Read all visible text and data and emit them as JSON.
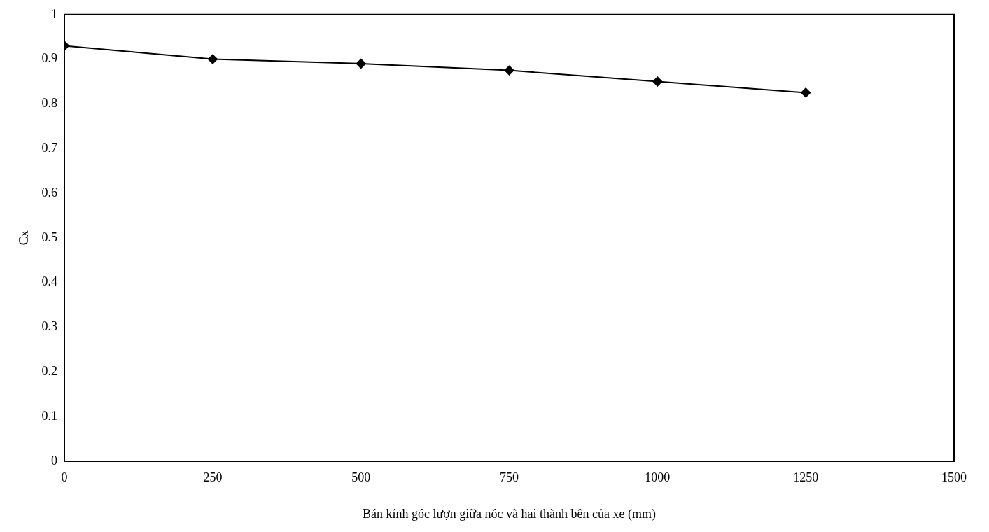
{
  "chart_data": {
    "type": "line",
    "xlabel": "Bán kính góc lượn giữa nóc và hai thành bên của xe (mm)",
    "ylabel": "Cx",
    "x": [
      0,
      250,
      500,
      750,
      1000,
      1250
    ],
    "series": [
      {
        "color": "#000000",
        "values": [
          0.93,
          0.9,
          0.89,
          0.875,
          0.85,
          0.825
        ]
      }
    ],
    "xlim": [
      0,
      1500
    ],
    "xticks": [
      0,
      250,
      500,
      750,
      1000,
      1250,
      1500
    ],
    "ylim": [
      0,
      1
    ],
    "yticks": [
      0,
      0.1,
      0.2,
      0.3,
      0.4,
      0.5,
      0.6,
      0.7,
      0.8,
      0.9,
      1
    ],
    "grid": false,
    "legend": false,
    "marker": "diamond",
    "line_style": "solid"
  }
}
